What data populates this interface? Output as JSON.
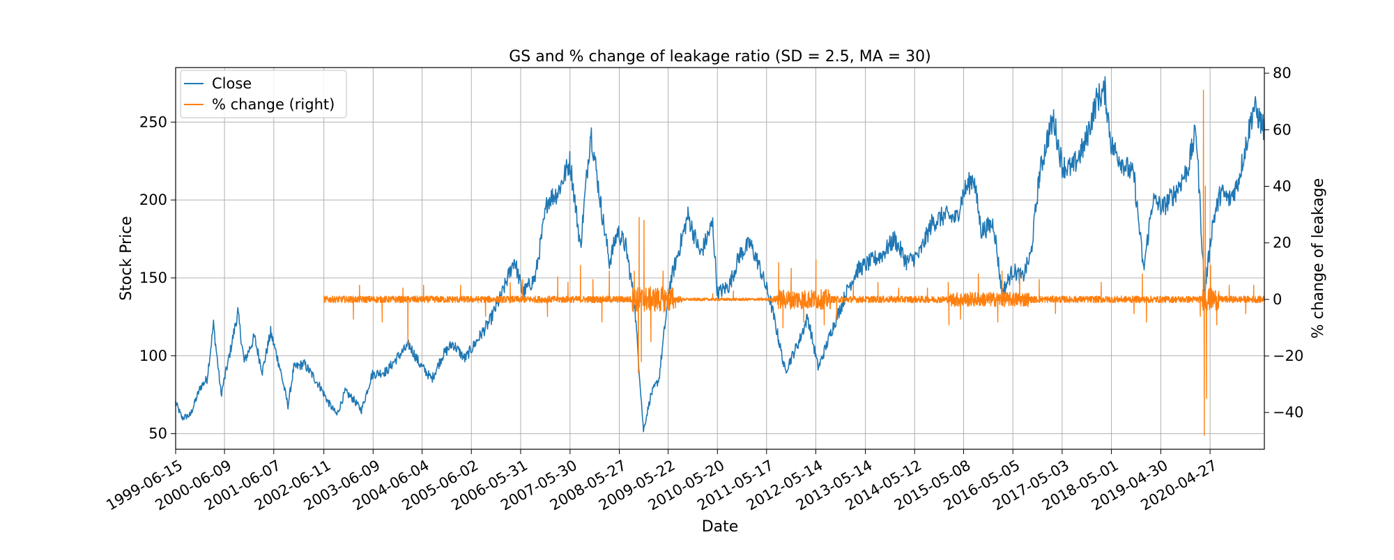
{
  "chart_data": {
    "type": "line",
    "title": "GS and % change of leakage ratio (SD = 2.5, MA = 30)",
    "xlabel": "Date",
    "ylabel": "Stock Price",
    "ylabel_right": "% change of leakage",
    "xlim": [
      "1999-06-15",
      "2021-06-01"
    ],
    "ylim": [
      40,
      285
    ],
    "ylim_right": [
      -53,
      82
    ],
    "x_ticks": [
      "1999-06-15",
      "2000-06-09",
      "2001-06-07",
      "2002-06-11",
      "2003-06-09",
      "2004-06-04",
      "2005-06-02",
      "2006-05-31",
      "2007-05-30",
      "2008-05-27",
      "2009-05-22",
      "2010-05-20",
      "2011-05-17",
      "2012-05-14",
      "2013-05-14",
      "2014-05-12",
      "2015-05-08",
      "2016-05-05",
      "2017-05-03",
      "2018-05-01",
      "2019-04-30",
      "2020-04-27"
    ],
    "y_ticks": [
      50,
      100,
      150,
      200,
      250
    ],
    "y_ticks_right": [
      -40,
      -20,
      0,
      20,
      40,
      60,
      80
    ],
    "grid": true,
    "legend_position": "top-left",
    "series": [
      {
        "name": "Close",
        "axis": "left",
        "color": "#1f77b4",
        "points": [
          [
            "1999-06-15",
            70
          ],
          [
            "1999-08-01",
            60
          ],
          [
            "1999-10-01",
            62
          ],
          [
            "1999-12-15",
            80
          ],
          [
            "2000-02-01",
            85
          ],
          [
            "2000-03-20",
            120
          ],
          [
            "2000-05-15",
            75
          ],
          [
            "2000-07-15",
            100
          ],
          [
            "2000-09-15",
            128
          ],
          [
            "2000-11-01",
            96
          ],
          [
            "2001-01-15",
            112
          ],
          [
            "2001-03-15",
            90
          ],
          [
            "2001-05-15",
            115
          ],
          [
            "2001-07-15",
            95
          ],
          [
            "2001-09-20",
            68
          ],
          [
            "2001-11-01",
            92
          ],
          [
            "2002-01-15",
            95
          ],
          [
            "2002-03-15",
            88
          ],
          [
            "2002-05-15",
            80
          ],
          [
            "2002-07-15",
            70
          ],
          [
            "2002-09-15",
            62
          ],
          [
            "2002-11-15",
            77
          ],
          [
            "2003-01-15",
            72
          ],
          [
            "2003-03-15",
            65
          ],
          [
            "2003-06-01",
            88
          ],
          [
            "2003-09-15",
            90
          ],
          [
            "2003-12-15",
            100
          ],
          [
            "2004-03-01",
            107
          ],
          [
            "2004-05-15",
            95
          ],
          [
            "2004-08-15",
            85
          ],
          [
            "2004-11-01",
            100
          ],
          [
            "2005-01-15",
            108
          ],
          [
            "2005-04-15",
            98
          ],
          [
            "2005-07-15",
            110
          ],
          [
            "2005-10-15",
            122
          ],
          [
            "2006-01-15",
            140
          ],
          [
            "2006-04-15",
            162
          ],
          [
            "2006-06-15",
            140
          ],
          [
            "2006-09-15",
            150
          ],
          [
            "2006-12-15",
            200
          ],
          [
            "2007-03-01",
            205
          ],
          [
            "2007-05-30",
            225
          ],
          [
            "2007-08-15",
            170
          ],
          [
            "2007-10-30",
            245
          ],
          [
            "2008-01-15",
            195
          ],
          [
            "2008-03-15",
            160
          ],
          [
            "2008-05-15",
            180
          ],
          [
            "2008-07-15",
            170
          ],
          [
            "2008-09-15",
            135
          ],
          [
            "2008-11-21",
            52
          ],
          [
            "2009-01-15",
            75
          ],
          [
            "2009-03-15",
            85
          ],
          [
            "2009-06-01",
            145
          ],
          [
            "2009-09-15",
            180
          ],
          [
            "2009-10-15",
            190
          ],
          [
            "2010-01-15",
            165
          ],
          [
            "2010-04-15",
            185
          ],
          [
            "2010-05-20",
            140
          ],
          [
            "2010-08-15",
            145
          ],
          [
            "2010-11-01",
            165
          ],
          [
            "2011-01-15",
            172
          ],
          [
            "2011-03-15",
            160
          ],
          [
            "2011-06-15",
            135
          ],
          [
            "2011-08-15",
            110
          ],
          [
            "2011-10-01",
            90
          ],
          [
            "2012-01-15",
            110
          ],
          [
            "2012-03-15",
            125
          ],
          [
            "2012-06-01",
            92
          ],
          [
            "2012-09-15",
            118
          ],
          [
            "2013-01-15",
            145
          ],
          [
            "2013-03-15",
            155
          ],
          [
            "2013-06-15",
            160
          ],
          [
            "2013-09-15",
            165
          ],
          [
            "2013-12-15",
            175
          ],
          [
            "2014-03-15",
            160
          ],
          [
            "2014-06-15",
            165
          ],
          [
            "2014-09-15",
            185
          ],
          [
            "2014-12-15",
            190
          ],
          [
            "2015-03-15",
            188
          ],
          [
            "2015-05-08",
            205
          ],
          [
            "2015-07-20",
            215
          ],
          [
            "2015-09-15",
            180
          ],
          [
            "2015-12-15",
            185
          ],
          [
            "2016-02-15",
            140
          ],
          [
            "2016-05-05",
            155
          ],
          [
            "2016-07-15",
            150
          ],
          [
            "2016-09-15",
            165
          ],
          [
            "2016-11-15",
            215
          ],
          [
            "2017-01-15",
            240
          ],
          [
            "2017-03-01",
            252
          ],
          [
            "2017-05-03",
            222
          ],
          [
            "2017-07-15",
            220
          ],
          [
            "2017-10-15",
            235
          ],
          [
            "2018-01-15",
            265
          ],
          [
            "2018-03-15",
            270
          ],
          [
            "2018-05-01",
            235
          ],
          [
            "2018-07-15",
            225
          ],
          [
            "2018-10-15",
            215
          ],
          [
            "2018-12-24",
            155
          ],
          [
            "2019-03-01",
            200
          ],
          [
            "2019-05-15",
            195
          ],
          [
            "2019-08-15",
            205
          ],
          [
            "2019-11-15",
            220
          ],
          [
            "2020-01-15",
            245
          ],
          [
            "2020-03-18",
            140
          ],
          [
            "2020-05-15",
            185
          ],
          [
            "2020-07-15",
            205
          ],
          [
            "2020-09-15",
            200
          ],
          [
            "2020-11-15",
            210
          ],
          [
            "2021-01-15",
            235
          ],
          [
            "2021-03-15",
            260
          ],
          [
            "2021-06-01",
            245
          ]
        ]
      },
      {
        "name": "% change (right)",
        "axis": "right",
        "color": "#ff7f0e",
        "start": "2002-06-11",
        "spikes": [
          [
            "2003-01-15",
            -7
          ],
          [
            "2003-03-01",
            5
          ],
          [
            "2003-08-15",
            -8
          ],
          [
            "2004-01-15",
            4
          ],
          [
            "2004-02-20",
            -16
          ],
          [
            "2004-06-15",
            5
          ],
          [
            "2005-03-15",
            5
          ],
          [
            "2005-09-15",
            -6
          ],
          [
            "2006-03-15",
            6
          ],
          [
            "2006-06-15",
            7
          ],
          [
            "2006-12-15",
            -6
          ],
          [
            "2007-03-01",
            8
          ],
          [
            "2007-05-15",
            6
          ],
          [
            "2007-08-15",
            12
          ],
          [
            "2007-11-15",
            7
          ],
          [
            "2008-01-20",
            -8
          ],
          [
            "2008-03-15",
            10
          ],
          [
            "2008-09-15",
            10
          ],
          [
            "2008-10-15",
            -26
          ],
          [
            "2008-10-20",
            29
          ],
          [
            "2008-11-05",
            -22
          ],
          [
            "2008-11-25",
            28
          ],
          [
            "2009-01-15",
            -15
          ],
          [
            "2009-04-15",
            10
          ],
          [
            "2009-07-15",
            -3
          ],
          [
            "2010-04-15",
            2
          ],
          [
            "2010-09-15",
            3
          ],
          [
            "2011-08-15",
            13
          ],
          [
            "2011-09-15",
            -10
          ],
          [
            "2011-11-15",
            11
          ],
          [
            "2012-02-15",
            -8
          ],
          [
            "2012-05-15",
            14
          ],
          [
            "2012-07-15",
            -9
          ],
          [
            "2012-10-15",
            -7
          ],
          [
            "2013-02-15",
            5
          ],
          [
            "2013-08-15",
            6
          ],
          [
            "2014-01-15",
            4
          ],
          [
            "2014-08-15",
            4
          ],
          [
            "2015-01-15",
            6
          ],
          [
            "2015-01-20",
            -9
          ],
          [
            "2015-04-15",
            -7
          ],
          [
            "2015-08-25",
            9
          ],
          [
            "2016-01-15",
            -8
          ],
          [
            "2016-02-15",
            10
          ],
          [
            "2016-06-24",
            10
          ],
          [
            "2016-11-15",
            7
          ],
          [
            "2017-03-15",
            -5
          ],
          [
            "2018-02-15",
            6
          ],
          [
            "2018-10-15",
            -5
          ],
          [
            "2018-12-15",
            9
          ],
          [
            "2019-01-15",
            -8
          ],
          [
            "2020-02-15",
            -6
          ],
          [
            "2020-03-09",
            74
          ],
          [
            "2020-03-16",
            -48
          ],
          [
            "2020-03-23",
            40
          ],
          [
            "2020-04-01",
            -35
          ],
          [
            "2020-05-01",
            12
          ],
          [
            "2020-06-15",
            -9
          ],
          [
            "2020-09-15",
            5
          ],
          [
            "2021-01-15",
            -5
          ],
          [
            "2021-03-15",
            5
          ]
        ]
      }
    ]
  }
}
